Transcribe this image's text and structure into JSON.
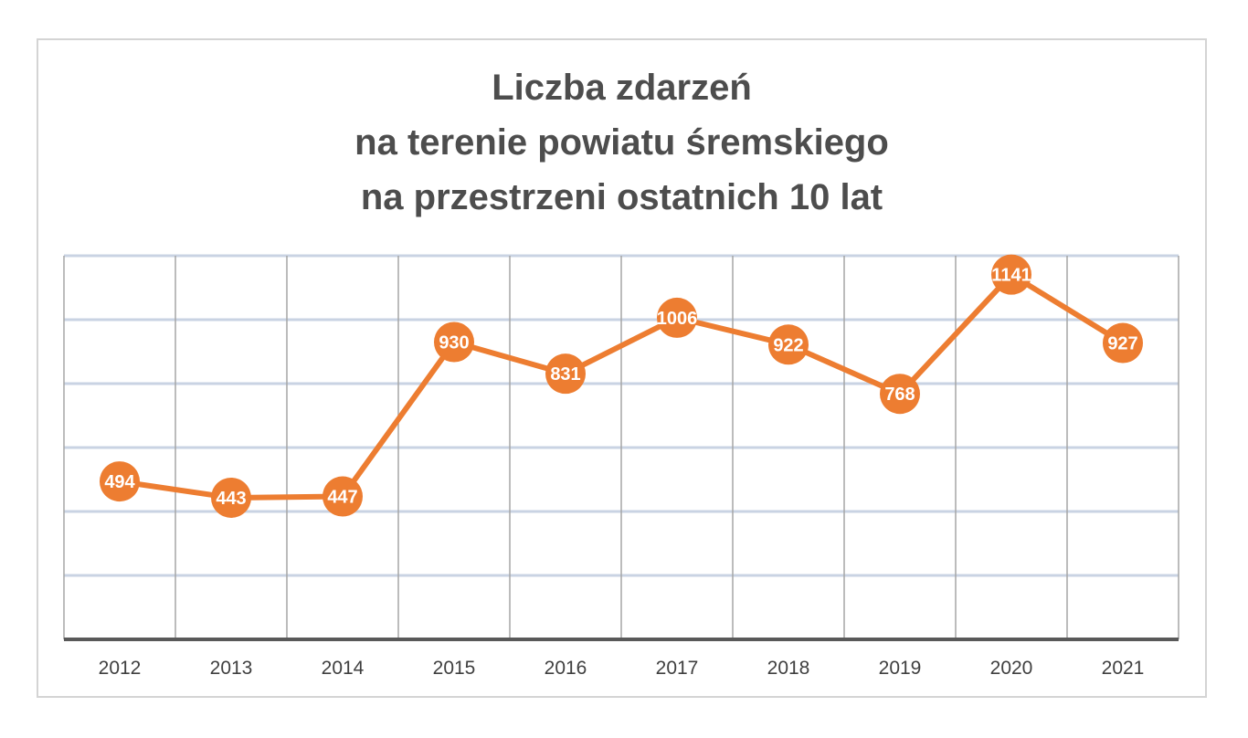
{
  "chart_data": {
    "type": "line",
    "title": [
      "Liczba zdarzeń",
      "na terenie powiatu śremskiego",
      "na przestrzeni ostatnich 10 lat"
    ],
    "categories": [
      "2012",
      "2013",
      "2014",
      "2015",
      "2016",
      "2017",
      "2018",
      "2019",
      "2020",
      "2021"
    ],
    "series": [
      {
        "name": "Liczba zdarzeń",
        "values": [
          494,
          443,
          447,
          930,
          831,
          1006,
          922,
          768,
          1141,
          927
        ]
      }
    ],
    "ylim": [
      0,
      1200
    ],
    "grid": true,
    "legend": "none",
    "colors": {
      "line": "#ed7d31",
      "marker": "#ed7d31",
      "grid": "#c9d3e3",
      "axis": "#595959",
      "vgrid": "#a6a6a6"
    }
  }
}
